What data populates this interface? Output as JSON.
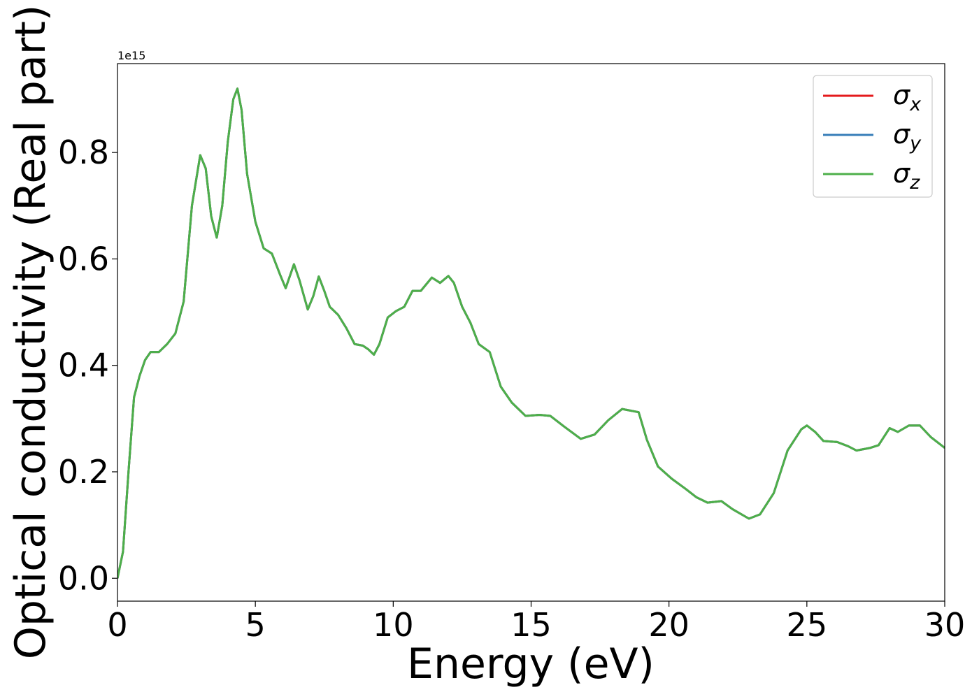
{
  "chart_data": {
    "type": "line",
    "xlabel": "Energy (eV)",
    "ylabel": "Optical conductivity (Real part)",
    "y_offset_text": "1e15",
    "xlim": [
      0,
      30
    ],
    "ylim": [
      -0.043,
      0.967
    ],
    "xticks": [
      0,
      5,
      10,
      15,
      20,
      25,
      30
    ],
    "yticks": [
      {
        "value": 0,
        "label": "0.0"
      },
      0.2,
      0.4,
      0.6,
      0.8
    ],
    "legend": "upper right",
    "x": [
      0,
      0.2,
      0.4,
      0.6,
      0.8,
      1.0,
      1.2,
      1.5,
      1.8,
      2.1,
      2.4,
      2.7,
      3.0,
      3.2,
      3.4,
      3.6,
      3.8,
      4.0,
      4.2,
      4.35,
      4.5,
      4.7,
      5.0,
      5.3,
      5.6,
      5.9,
      6.1,
      6.4,
      6.6,
      6.9,
      7.1,
      7.3,
      7.5,
      7.7,
      8.0,
      8.3,
      8.6,
      8.9,
      9.1,
      9.3,
      9.5,
      9.8,
      10.1,
      10.4,
      10.7,
      11.0,
      11.4,
      11.7,
      12.0,
      12.2,
      12.5,
      12.8,
      13.1,
      13.5,
      13.9,
      14.3,
      14.8,
      15.3,
      15.7,
      16.2,
      16.8,
      17.3,
      17.8,
      18.3,
      18.9,
      19.2,
      19.6,
      20.1,
      20.6,
      21.0,
      21.4,
      21.9,
      22.3,
      22.9,
      23.3,
      23.8,
      24.3,
      24.8,
      25.0,
      25.3,
      25.6,
      26.1,
      26.5,
      26.8,
      27.3,
      27.6,
      28.0,
      28.3,
      28.7,
      29.1,
      29.5,
      30
    ],
    "series": [
      {
        "name": "σx",
        "color": "#e41a1c",
        "values": [
          0.0,
          0.05,
          0.2,
          0.34,
          0.38,
          0.41,
          0.425,
          0.425,
          0.44,
          0.46,
          0.52,
          0.7,
          0.795,
          0.77,
          0.68,
          0.64,
          0.7,
          0.82,
          0.9,
          0.92,
          0.88,
          0.76,
          0.67,
          0.62,
          0.61,
          0.57,
          0.545,
          0.59,
          0.56,
          0.505,
          0.53,
          0.567,
          0.54,
          0.51,
          0.495,
          0.47,
          0.44,
          0.437,
          0.43,
          0.42,
          0.44,
          0.49,
          0.502,
          0.51,
          0.54,
          0.54,
          0.565,
          0.555,
          0.568,
          0.555,
          0.51,
          0.48,
          0.44,
          0.425,
          0.36,
          0.33,
          0.305,
          0.307,
          0.305,
          0.285,
          0.262,
          0.27,
          0.297,
          0.318,
          0.312,
          0.26,
          0.21,
          0.187,
          0.168,
          0.152,
          0.142,
          0.145,
          0.13,
          0.112,
          0.12,
          0.16,
          0.24,
          0.28,
          0.287,
          0.275,
          0.258,
          0.256,
          0.248,
          0.24,
          0.245,
          0.25,
          0.282,
          0.275,
          0.287,
          0.287,
          0.265,
          0.245
        ]
      },
      {
        "name": "σy",
        "color": "#377eb8",
        "values": [
          0.0,
          0.05,
          0.2,
          0.34,
          0.38,
          0.41,
          0.425,
          0.425,
          0.44,
          0.46,
          0.52,
          0.7,
          0.795,
          0.77,
          0.68,
          0.64,
          0.7,
          0.82,
          0.9,
          0.92,
          0.88,
          0.76,
          0.67,
          0.62,
          0.61,
          0.57,
          0.545,
          0.59,
          0.56,
          0.505,
          0.53,
          0.567,
          0.54,
          0.51,
          0.495,
          0.47,
          0.44,
          0.437,
          0.43,
          0.42,
          0.44,
          0.49,
          0.502,
          0.51,
          0.54,
          0.54,
          0.565,
          0.555,
          0.568,
          0.555,
          0.51,
          0.48,
          0.44,
          0.425,
          0.36,
          0.33,
          0.305,
          0.307,
          0.305,
          0.285,
          0.262,
          0.27,
          0.297,
          0.318,
          0.312,
          0.26,
          0.21,
          0.187,
          0.168,
          0.152,
          0.142,
          0.145,
          0.13,
          0.112,
          0.12,
          0.16,
          0.24,
          0.28,
          0.287,
          0.275,
          0.258,
          0.256,
          0.248,
          0.24,
          0.245,
          0.25,
          0.282,
          0.275,
          0.287,
          0.287,
          0.265,
          0.245
        ]
      },
      {
        "name": "σz",
        "color": "#4daf4a",
        "values": [
          0.0,
          0.05,
          0.2,
          0.34,
          0.38,
          0.41,
          0.425,
          0.425,
          0.44,
          0.46,
          0.52,
          0.7,
          0.795,
          0.77,
          0.68,
          0.64,
          0.7,
          0.82,
          0.9,
          0.92,
          0.88,
          0.76,
          0.67,
          0.62,
          0.61,
          0.57,
          0.545,
          0.59,
          0.56,
          0.505,
          0.53,
          0.567,
          0.54,
          0.51,
          0.495,
          0.47,
          0.44,
          0.437,
          0.43,
          0.42,
          0.44,
          0.49,
          0.502,
          0.51,
          0.54,
          0.54,
          0.565,
          0.555,
          0.568,
          0.555,
          0.51,
          0.48,
          0.44,
          0.425,
          0.36,
          0.33,
          0.305,
          0.307,
          0.305,
          0.285,
          0.262,
          0.27,
          0.297,
          0.318,
          0.312,
          0.26,
          0.21,
          0.187,
          0.168,
          0.152,
          0.142,
          0.145,
          0.13,
          0.112,
          0.12,
          0.16,
          0.24,
          0.28,
          0.287,
          0.275,
          0.258,
          0.256,
          0.248,
          0.24,
          0.245,
          0.25,
          0.282,
          0.275,
          0.287,
          0.287,
          0.265,
          0.245
        ]
      }
    ]
  }
}
